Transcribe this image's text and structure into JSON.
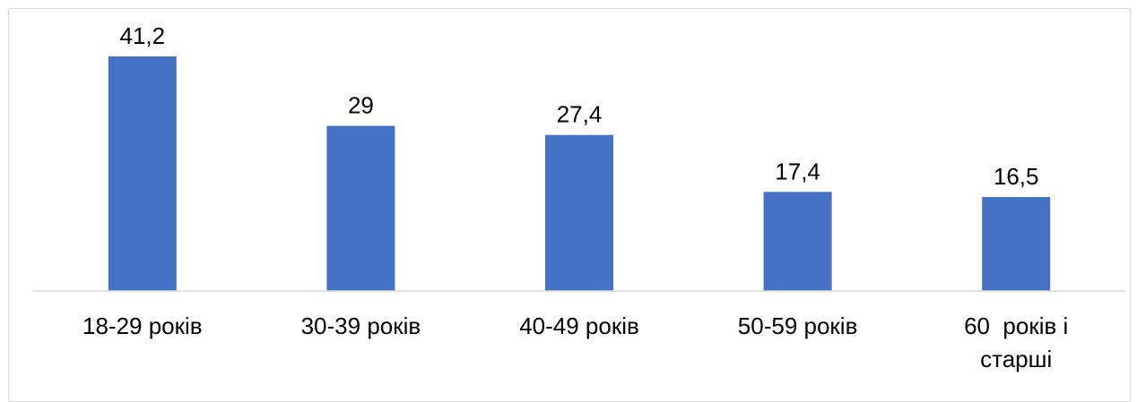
{
  "chart_data": {
    "type": "bar",
    "categories": [
      [
        "18-29 років"
      ],
      [
        "30-39 років"
      ],
      [
        "40-49 років"
      ],
      [
        "50-59 років"
      ],
      [
        "60  років і",
        "старші"
      ]
    ],
    "values": [
      41.2,
      29,
      27.4,
      17.4,
      16.5
    ],
    "value_labels": [
      "41,2",
      "29",
      "27,4",
      "17,4",
      "16,5"
    ],
    "ylim": [
      0,
      45
    ],
    "grid": false,
    "legend": "none",
    "colors": {
      "bar": "#4472C4",
      "axis": "#d9d9d9",
      "text": "#000000"
    }
  }
}
